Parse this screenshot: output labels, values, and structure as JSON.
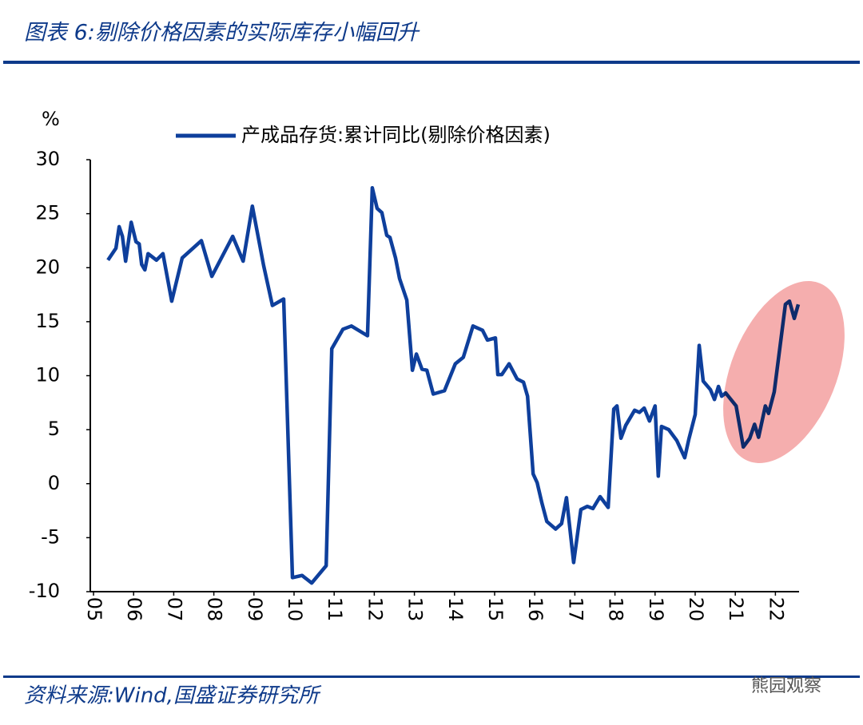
{
  "header": {
    "title": "图表 6:剔除价格因素的实际库存小幅回升"
  },
  "chart_data": {
    "type": "line",
    "y_unit": "%",
    "xlim": [
      2004.92,
      2022.59
    ],
    "xticks": [
      {
        "value": 2005,
        "label": "05"
      },
      {
        "value": 2006,
        "label": "06"
      },
      {
        "value": 2007,
        "label": "07"
      },
      {
        "value": 2008,
        "label": "08"
      },
      {
        "value": 2009,
        "label": "09"
      },
      {
        "value": 2010,
        "label": "10"
      },
      {
        "value": 2011,
        "label": "11"
      },
      {
        "value": 2012,
        "label": "12"
      },
      {
        "value": 2013,
        "label": "13"
      },
      {
        "value": 2014,
        "label": "14"
      },
      {
        "value": 2015,
        "label": "15"
      },
      {
        "value": 2016,
        "label": "16"
      },
      {
        "value": 2017,
        "label": "17"
      },
      {
        "value": 2018,
        "label": "18"
      },
      {
        "value": 2019,
        "label": "19"
      },
      {
        "value": 2020,
        "label": "20"
      },
      {
        "value": 2021,
        "label": "21"
      },
      {
        "value": 2022,
        "label": "22"
      }
    ],
    "ylim": [
      -10,
      30
    ],
    "yticks": [
      -10,
      -5,
      0,
      5,
      10,
      15,
      20,
      25,
      30
    ],
    "x": [
      2005.36,
      2005.56,
      2005.64,
      2005.72,
      2005.8,
      2005.94,
      2006.06,
      2006.14,
      2006.2,
      2006.28,
      2006.36,
      2006.57,
      2006.73,
      2006.95,
      2007.21,
      2007.69,
      2007.95,
      2008.47,
      2008.73,
      2008.96,
      2009.24,
      2009.46,
      2009.74,
      2009.96,
      2010.2,
      2010.44,
      2010.8,
      2010.94,
      2011.22,
      2011.43,
      2011.83,
      2011.95,
      2012.07,
      2012.19,
      2012.31,
      2012.39,
      2012.53,
      2012.63,
      2012.81,
      2012.95,
      2013.05,
      2013.19,
      2013.31,
      2013.47,
      2013.75,
      2014.02,
      2014.22,
      2014.46,
      2014.7,
      2014.82,
      2015.02,
      2015.08,
      2015.18,
      2015.36,
      2015.56,
      2015.72,
      2015.82,
      2015.96,
      2016.06,
      2016.18,
      2016.3,
      2016.52,
      2016.67,
      2016.79,
      2016.97,
      2017.15,
      2017.31,
      2017.45,
      2017.63,
      2017.83,
      2017.97,
      2018.05,
      2018.15,
      2018.27,
      2018.49,
      2018.61,
      2018.73,
      2018.86,
      2019.0,
      2019.08,
      2019.16,
      2019.34,
      2019.54,
      2019.74,
      2019.84,
      2020.0,
      2020.1,
      2020.2,
      2020.38,
      2020.48,
      2020.58,
      2020.66,
      2020.76,
      2021.02,
      2021.2,
      2021.36,
      2021.48,
      2021.58,
      2021.75,
      2021.83,
      2021.97,
      2022.25,
      2022.35,
      2022.47,
      2022.57
    ],
    "series": [
      {
        "name": "产成品存货:累计同比(剔除价格因素)",
        "color": "#0e3f9c",
        "values": [
          20.7,
          21.8,
          23.8,
          22.9,
          20.6,
          24.2,
          22.4,
          22.2,
          20.3,
          19.8,
          21.3,
          20.7,
          21.3,
          16.9,
          20.9,
          22.5,
          19.2,
          22.9,
          20.6,
          25.7,
          20.2,
          16.5,
          17.1,
          -8.7,
          -8.5,
          -9.2,
          -7.6,
          12.5,
          14.3,
          14.6,
          13.7,
          27.4,
          25.5,
          25.1,
          23.0,
          22.8,
          20.9,
          19.0,
          17.0,
          10.5,
          12.0,
          10.6,
          10.5,
          8.3,
          8.6,
          11.1,
          11.7,
          14.6,
          14.2,
          13.3,
          13.5,
          10.1,
          10.1,
          11.1,
          9.7,
          9.4,
          8.1,
          0.9,
          0.1,
          -1.8,
          -3.5,
          -4.2,
          -3.7,
          -1.3,
          -7.3,
          -2.4,
          -2.1,
          -2.3,
          -1.2,
          -2.2,
          6.9,
          7.2,
          4.2,
          5.4,
          6.8,
          6.6,
          7.0,
          5.8,
          7.2,
          0.7,
          5.3,
          5.0,
          4.0,
          2.4,
          4.1,
          6.4,
          12.8,
          9.5,
          8.7,
          7.8,
          9.0,
          8.1,
          8.4,
          7.2,
          3.4,
          4.2,
          5.5,
          4.3,
          7.2,
          6.5,
          8.5,
          16.6,
          16.9,
          15.3,
          16.6
        ]
      }
    ],
    "legend": "top"
  },
  "footer": {
    "source": "资料来源:Wind,国盛证券研究所",
    "watermark": "熊园观察"
  }
}
